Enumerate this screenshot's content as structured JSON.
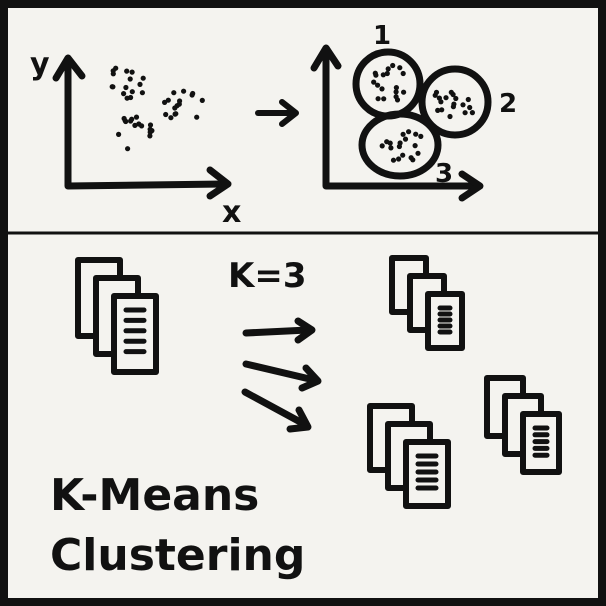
{
  "diagram": {
    "axes": {
      "x_label": "x",
      "y_label": "y"
    },
    "cluster_labels": [
      "1",
      "2",
      "3"
    ],
    "k_label": "K=3",
    "title": {
      "line1": "K-Means",
      "line2": "Clustering"
    }
  },
  "colors": {
    "ink": "#111111",
    "paper": "#f4f3ef"
  },
  "icons": [
    "document-stack-icon",
    "right-arrow-icon"
  ]
}
